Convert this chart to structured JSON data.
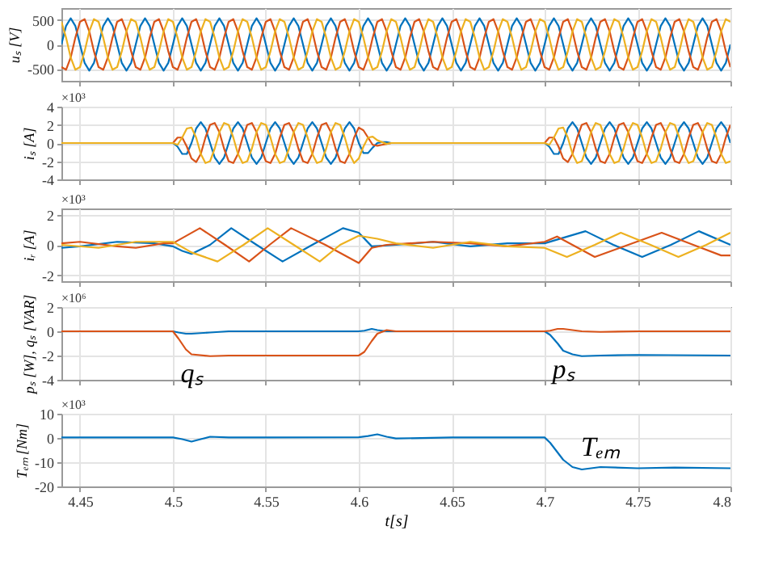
{
  "chart_data": [
    {
      "type": "line",
      "ylabel": "uₛ [V]",
      "xlim": [
        4.44,
        4.8
      ],
      "xticks": [
        4.45,
        4.5,
        4.55,
        4.6,
        4.65,
        4.7,
        4.75,
        4.8
      ],
      "ylim": [
        -750,
        750
      ],
      "yticks": [
        -500,
        0,
        500
      ],
      "grid": true,
      "tick_labels": "y",
      "x": [
        4.44,
        4.4425,
        4.445,
        4.4475,
        4.45,
        4.4525,
        4.455,
        4.4575,
        4.46,
        4.4625,
        4.465,
        4.4675,
        4.47,
        4.4725,
        4.475,
        4.4775,
        4.48,
        4.4825,
        4.485,
        4.4875,
        4.49,
        4.4925,
        4.495,
        4.4975,
        4.5,
        4.5025,
        4.505,
        4.5075,
        4.51,
        4.5125,
        4.515,
        4.5175,
        4.52,
        4.5225,
        4.525,
        4.5275,
        4.53,
        4.5325,
        4.535,
        4.5375,
        4.54,
        4.5425,
        4.545,
        4.5475,
        4.55,
        4.5525,
        4.555,
        4.5575,
        4.56,
        4.5625,
        4.565,
        4.5675,
        4.57,
        4.5725,
        4.575,
        4.5775,
        4.58,
        4.5825,
        4.585,
        4.5875,
        4.59,
        4.5925,
        4.595,
        4.5975,
        4.6,
        4.6025,
        4.605,
        4.6075,
        4.61,
        4.6125,
        4.615,
        4.6175,
        4.62,
        4.6225,
        4.625,
        4.6275,
        4.63,
        4.6325,
        4.635,
        4.6375,
        4.64,
        4.6425,
        4.645,
        4.6475,
        4.65,
        4.6525,
        4.655,
        4.6575,
        4.66,
        4.6625,
        4.665,
        4.6675,
        4.67,
        4.6725,
        4.675,
        4.6775,
        4.68,
        4.6825,
        4.685,
        4.6875,
        4.69,
        4.6925,
        4.695,
        4.6975,
        4.7,
        4.7025,
        4.705,
        4.7075,
        4.71,
        4.7125,
        4.715,
        4.7175,
        4.72,
        4.7225,
        4.725,
        4.7275,
        4.73,
        4.7325,
        4.735,
        4.7375,
        4.74,
        4.7425,
        4.745,
        4.7475,
        4.75,
        4.7525,
        4.755,
        4.7575,
        4.76,
        4.7625,
        4.765,
        4.7675,
        4.77,
        4.7725,
        4.775,
        4.7775,
        4.78,
        4.7825,
        4.785,
        4.7875,
        4.79,
        4.7925,
        4.795,
        4.7975,
        4.8
      ],
      "series": [
        {
          "color": "#0072bd",
          "values": [
            0,
            382,
            540,
            382,
            0,
            -382,
            -540,
            -382,
            0,
            382,
            540,
            382,
            0,
            -382,
            -540,
            -382,
            0,
            382,
            540,
            382,
            0,
            -382,
            -540,
            -382,
            0,
            382,
            540,
            382,
            0,
            -382,
            -540,
            -382,
            0,
            382,
            540,
            382,
            0,
            -382,
            -540,
            -382,
            0,
            382,
            540,
            382,
            0,
            -382,
            -540,
            -382,
            0,
            382,
            540,
            382,
            0,
            -382,
            -540,
            -382,
            0,
            382,
            540,
            382,
            0,
            -382,
            -540,
            -382,
            0,
            382,
            540,
            382,
            0,
            -382,
            -540,
            -382,
            0,
            382,
            540,
            382,
            0,
            -382,
            -540,
            -382,
            0,
            382,
            540,
            382,
            0,
            -382,
            -540,
            -382,
            0,
            382,
            540,
            382,
            0,
            -382,
            -540,
            -382,
            0,
            382,
            540,
            382,
            0,
            -382,
            -540,
            -382,
            0,
            382,
            540,
            382,
            0,
            -382,
            -540,
            -382,
            0,
            382,
            540,
            382,
            0,
            -382,
            -540,
            -382,
            0,
            382,
            540,
            382,
            0,
            -382,
            -540,
            -382,
            0,
            382,
            540,
            382,
            0,
            -382,
            -540,
            -382,
            0,
            382,
            540,
            382,
            0,
            -382,
            -540,
            -382,
            0
          ]
        },
        {
          "color": "#d95319",
          "values": [
            -468,
            -522,
            -270,
            140,
            468,
            522,
            270,
            -140,
            -468,
            -522,
            -270,
            140,
            468,
            522,
            270,
            -140,
            -468,
            -522,
            -270,
            140,
            468,
            522,
            270,
            -140,
            -468,
            -522,
            -270,
            140,
            468,
            522,
            270,
            -140,
            -468,
            -522,
            -270,
            140,
            468,
            522,
            270,
            -140,
            -468,
            -522,
            -270,
            140,
            468,
            522,
            270,
            -140,
            -468,
            -522,
            -270,
            140,
            468,
            522,
            270,
            -140,
            -468,
            -522,
            -270,
            140,
            468,
            522,
            270,
            -140,
            -468,
            -522,
            -270,
            140,
            468,
            522,
            270,
            -140,
            -468,
            -522,
            -270,
            140,
            468,
            522,
            270,
            -140,
            -468,
            -522,
            -270,
            140,
            468,
            522,
            270,
            -140,
            -468,
            -522,
            -270,
            140,
            468,
            522,
            270,
            -140,
            -468,
            -522,
            -270,
            140,
            468,
            522,
            270,
            -140,
            -468,
            -522,
            -270,
            140,
            468,
            522,
            270,
            -140,
            -468,
            -522,
            -270,
            140,
            468,
            522,
            270,
            -140,
            -468,
            -522,
            -270,
            140,
            468,
            522,
            270,
            -140,
            -468,
            -522,
            -270,
            140,
            468,
            522,
            270,
            -140,
            -468,
            -522,
            -270,
            140,
            468,
            522,
            270,
            -140,
            -468
          ]
        },
        {
          "color": "#edb120",
          "values": [
            468,
            140,
            -270,
            -522,
            -468,
            -140,
            270,
            522,
            468,
            140,
            -270,
            -522,
            -468,
            -140,
            270,
            522,
            468,
            140,
            -270,
            -522,
            -468,
            -140,
            270,
            522,
            468,
            140,
            -270,
            -522,
            -468,
            -140,
            270,
            522,
            468,
            140,
            -270,
            -522,
            -468,
            -140,
            270,
            522,
            468,
            140,
            -270,
            -522,
            -468,
            -140,
            270,
            522,
            468,
            140,
            -270,
            -522,
            -468,
            -140,
            270,
            522,
            468,
            140,
            -270,
            -522,
            -468,
            -140,
            270,
            522,
            468,
            140,
            -270,
            -522,
            -468,
            -140,
            270,
            522,
            468,
            140,
            -270,
            -522,
            -468,
            -140,
            270,
            522,
            468,
            140,
            -270,
            -522,
            -468,
            -140,
            270,
            522,
            468,
            140,
            -270,
            -522,
            -468,
            -140,
            270,
            522,
            468,
            140,
            -270,
            -522,
            -468,
            -140,
            270,
            522,
            468,
            140,
            -270,
            -522,
            -468,
            -140,
            270,
            522,
            468,
            140,
            -270,
            -522,
            -468,
            -140,
            270,
            522,
            468,
            140,
            -270,
            -522,
            -468,
            -140,
            270,
            522,
            468,
            140,
            -270,
            -522,
            -468,
            -140,
            270,
            522,
            468,
            140,
            -270,
            -522,
            -468,
            -140,
            270,
            522,
            468
          ]
        }
      ]
    },
    {
      "type": "line",
      "ylabel": "iₛ [A]",
      "xlim": [
        4.44,
        4.8
      ],
      "xticks": [
        4.45,
        4.5,
        4.55,
        4.6,
        4.65,
        4.7,
        4.75,
        4.8
      ],
      "ylim": [
        -4,
        4
      ],
      "yticks": [
        -4,
        -2,
        0,
        2,
        4
      ],
      "grid": true,
      "tick_labels": "y",
      "annotations": [
        "×10³"
      ],
      "x": [
        4.44,
        4.5,
        4.5025,
        4.505,
        4.5075,
        4.51,
        4.5125,
        4.515,
        4.5175,
        4.52,
        4.5225,
        4.525,
        4.5275,
        4.53,
        4.5325,
        4.535,
        4.5375,
        4.54,
        4.5425,
        4.545,
        4.5475,
        4.55,
        4.5525,
        4.555,
        4.5575,
        4.56,
        4.5625,
        4.565,
        4.5675,
        4.57,
        4.5725,
        4.575,
        4.5775,
        4.58,
        4.5825,
        4.585,
        4.5875,
        4.59,
        4.5925,
        4.595,
        4.5975,
        4.6,
        4.6025,
        4.605,
        4.6075,
        4.61,
        4.6125,
        4.615,
        4.6175,
        4.62,
        4.7,
        4.7025,
        4.705,
        4.7075,
        4.71,
        4.7125,
        4.715,
        4.7175,
        4.72,
        4.7225,
        4.725,
        4.7275,
        4.73,
        4.7325,
        4.735,
        4.7375,
        4.74,
        4.7425,
        4.745,
        4.7475,
        4.75,
        4.7525,
        4.755,
        4.7575,
        4.76,
        4.7625,
        4.765,
        4.7675,
        4.77,
        4.7725,
        4.775,
        4.7775,
        4.78,
        4.7825,
        4.785,
        4.7875,
        4.79,
        4.7925,
        4.795,
        4.7975,
        4.8
      ],
      "series": [
        {
          "color": "#0072bd",
          "values": [
            0,
            0,
            -0.4,
            -1.2,
            -1.2,
            0,
            1.6,
            2.3,
            1.6,
            0,
            -1.6,
            -2.3,
            -1.6,
            0,
            1.6,
            2.3,
            1.6,
            0,
            -1.6,
            -2.3,
            -1.6,
            0,
            1.6,
            2.3,
            1.6,
            0,
            -1.6,
            -2.3,
            -1.6,
            0,
            1.6,
            2.3,
            1.6,
            0,
            -1.6,
            -2.3,
            -1.6,
            0,
            1.6,
            2.3,
            1.6,
            0,
            -1.1,
            -1.1,
            -0.5,
            0,
            0.1,
            0.1,
            0,
            0,
            0,
            -0.4,
            -1.2,
            -1.2,
            0,
            1.6,
            2.3,
            1.6,
            0,
            -1.6,
            -2.3,
            -1.6,
            0,
            1.6,
            2.3,
            1.6,
            0,
            -1.6,
            -2.3,
            -1.6,
            0,
            1.6,
            2.3,
            1.6,
            0,
            -1.6,
            -2.3,
            -1.6,
            0,
            1.6,
            2.3,
            1.6,
            0,
            -1.6,
            -2.3,
            -1.6,
            0,
            1.6,
            2.3,
            1.6,
            0
          ]
        },
        {
          "color": "#d95319",
          "values": [
            0,
            0,
            0.6,
            0.6,
            -0.4,
            -1.7,
            -2.1,
            -1.2,
            0.6,
            2.0,
            2.2,
            1.2,
            -0.6,
            -2.0,
            -2.2,
            -1.2,
            0.6,
            2.0,
            2.2,
            1.2,
            -0.6,
            -2.0,
            -2.2,
            -1.2,
            0.6,
            2.0,
            2.2,
            1.2,
            -0.6,
            -2.0,
            -2.2,
            -1.2,
            0.6,
            2.0,
            2.2,
            1.2,
            -0.6,
            -2.0,
            -2.2,
            -1.2,
            0.6,
            1.7,
            1.4,
            0.6,
            -0.2,
            -0.3,
            -0.2,
            -0.1,
            0,
            0,
            0,
            0.6,
            0.6,
            -0.4,
            -1.7,
            -2.1,
            -1.2,
            0.6,
            2.0,
            2.2,
            1.2,
            -0.6,
            -2.0,
            -2.2,
            -1.2,
            0.6,
            2.0,
            2.2,
            1.2,
            -0.6,
            -2.0,
            -2.2,
            -1.2,
            0.6,
            2.0,
            2.2,
            1.2,
            -0.6,
            -2.0,
            -2.2,
            -1.2,
            0.6,
            2.0,
            2.2,
            1.2,
            -0.6,
            -2.0,
            -2.2,
            -1.2,
            0.6,
            2.0
          ]
        },
        {
          "color": "#edb120",
          "values": [
            0,
            0,
            -0.2,
            0.6,
            1.6,
            1.7,
            0.6,
            -1.2,
            -2.2,
            -2.0,
            -0.6,
            1.2,
            2.2,
            2.0,
            0.6,
            -1.2,
            -2.2,
            -2.0,
            -0.6,
            1.2,
            2.2,
            2.0,
            0.6,
            -1.2,
            -2.2,
            -2.0,
            -0.6,
            1.2,
            2.2,
            2.0,
            0.6,
            -1.2,
            -2.2,
            -2.0,
            -0.6,
            1.2,
            2.2,
            2.0,
            0.6,
            -1.2,
            -2.2,
            -1.7,
            -0.4,
            0.6,
            0.7,
            0.3,
            0.1,
            -0.1,
            0,
            0,
            0,
            -0.2,
            0.6,
            1.6,
            1.7,
            0.6,
            -1.2,
            -2.2,
            -2.0,
            -0.6,
            1.2,
            2.2,
            2.0,
            0.6,
            -1.2,
            -2.2,
            -2.0,
            -0.6,
            1.2,
            2.2,
            2.0,
            0.6,
            -1.2,
            -2.2,
            -2.0,
            -0.6,
            1.2,
            2.2,
            2.0,
            0.6,
            -1.2,
            -2.2,
            -2.0,
            -0.6,
            1.2,
            2.2,
            2.0,
            0.6,
            -1.2,
            -2.2,
            -2.0
          ]
        }
      ]
    },
    {
      "type": "line",
      "ylabel": "iᵣ [A]",
      "xlim": [
        4.44,
        4.8
      ],
      "xticks": [
        4.45,
        4.5,
        4.55,
        4.6,
        4.65,
        4.7,
        4.75,
        4.8
      ],
      "ylim": [
        -2.4,
        2.4
      ],
      "yticks": [
        -2,
        0,
        2
      ],
      "grid": true,
      "tick_labels": "y",
      "annotations": [
        "×10³"
      ],
      "series": [
        {
          "color": "#0072bd",
          "x": [
            4.44,
            4.45,
            4.47,
            4.49,
            4.5,
            4.505,
            4.51,
            4.52,
            4.5314,
            4.545,
            4.559,
            4.575,
            4.5915,
            4.6,
            4.607,
            4.62,
            4.64,
            4.66,
            4.68,
            4.7,
            4.722,
            4.737,
            4.7525,
            4.768,
            4.783,
            4.8
          ],
          "values": [
            -0.2,
            -0.1,
            0.2,
            0.1,
            -0.1,
            -0.4,
            -0.6,
            0,
            1.1,
            0,
            -1.1,
            0,
            1.1,
            0.8,
            -0.1,
            0,
            0.2,
            -0.1,
            0.1,
            0.1,
            0.9,
            0,
            -0.8,
            0,
            0.9,
            0
          ]
        },
        {
          "color": "#d95319",
          "x": [
            4.44,
            4.45,
            4.47,
            4.48,
            4.495,
            4.5,
            4.5145,
            4.528,
            4.541,
            4.552,
            4.5636,
            4.582,
            4.6,
            4.607,
            4.615,
            4.64,
            4.66,
            4.68,
            4.7,
            4.7067,
            4.727,
            4.745,
            4.763,
            4.78,
            4.795,
            4.8
          ],
          "values": [
            0.1,
            0.2,
            -0.1,
            -0.2,
            0.1,
            0.1,
            1.1,
            0,
            -1.1,
            0,
            1.1,
            0,
            -1.2,
            -0.2,
            0,
            0.2,
            0.1,
            -0.1,
            0.2,
            0.55,
            -0.8,
            0,
            0.8,
            0,
            -0.7,
            -0.7
          ]
        },
        {
          "color": "#edb120",
          "x": [
            4.44,
            4.46,
            4.48,
            4.5,
            4.51,
            4.524,
            4.538,
            4.551,
            4.565,
            4.579,
            4.59,
            4.6,
            4.61,
            4.62,
            4.64,
            4.66,
            4.68,
            4.7,
            4.712,
            4.727,
            4.741,
            4.757,
            4.772,
            4.787,
            4.8
          ],
          "values": [
            0,
            -0.2,
            0.2,
            0.2,
            -0.5,
            -1.1,
            0,
            1.1,
            0,
            -1.1,
            0,
            0.6,
            0.4,
            0.1,
            -0.2,
            0.2,
            -0.1,
            -0.2,
            -0.8,
            0,
            0.8,
            0,
            -0.8,
            0,
            0.8
          ]
        }
      ]
    },
    {
      "type": "line",
      "ylabel": "pₛ [W], qₛ [VAR]",
      "xlim": [
        4.44,
        4.8
      ],
      "xticks": [
        4.45,
        4.5,
        4.55,
        4.6,
        4.65,
        4.7,
        4.75,
        4.8
      ],
      "ylim": [
        -4,
        2
      ],
      "yticks": [
        -4,
        -2,
        0,
        2
      ],
      "grid": true,
      "tick_labels": "y",
      "annotations": [
        "×10⁶",
        {
          "text": "qₛ",
          "x": 4.51,
          "y": -1.9
        },
        {
          "text": "pₛ",
          "x": 4.71,
          "y": -1.6
        }
      ],
      "x": [
        4.44,
        4.5,
        4.503,
        4.507,
        4.51,
        4.52,
        4.53,
        4.55,
        4.6,
        4.603,
        4.607,
        4.61,
        4.615,
        4.62,
        4.65,
        4.7,
        4.703,
        4.707,
        4.71,
        4.715,
        4.72,
        4.73,
        4.75,
        4.8
      ],
      "series": [
        {
          "color": "#0072bd",
          "values": [
            0,
            0,
            -0.1,
            -0.2,
            -0.2,
            -0.1,
            0,
            0,
            0,
            0.05,
            0.2,
            0.1,
            0,
            0,
            0,
            0,
            -0.3,
            -1.0,
            -1.6,
            -1.9,
            -2.05,
            -2.0,
            -1.95,
            -2.0
          ]
        },
        {
          "color": "#d95319",
          "values": [
            0,
            0,
            -0.6,
            -1.5,
            -1.9,
            -2.05,
            -2.0,
            -2.0,
            -2.0,
            -1.7,
            -0.8,
            -0.2,
            0.1,
            0,
            0,
            0,
            0.05,
            0.2,
            0.2,
            0.1,
            0,
            -0.05,
            0,
            0
          ]
        }
      ]
    },
    {
      "type": "line",
      "ylabel": "Tₑₘ [Nm]",
      "xlabel": "t[s]",
      "xlim": [
        4.44,
        4.8
      ],
      "xticks": [
        4.45,
        4.5,
        4.55,
        4.6,
        4.65,
        4.7,
        4.75,
        4.8
      ],
      "ylim": [
        -20,
        10
      ],
      "yticks": [
        -20,
        -10,
        0,
        10
      ],
      "grid": true,
      "annotations": [
        "×10³",
        {
          "text": "Tₑₘ",
          "x": 4.73,
          "y": -12
        }
      ],
      "x": [
        4.44,
        4.5,
        4.505,
        4.51,
        4.515,
        4.52,
        4.53,
        4.55,
        4.6,
        4.605,
        4.61,
        4.615,
        4.62,
        4.65,
        4.7,
        4.703,
        4.707,
        4.71,
        4.715,
        4.72,
        4.73,
        4.75,
        4.77,
        4.8
      ],
      "series": [
        {
          "color": "#0072bd",
          "values": [
            0.2,
            0.2,
            -0.5,
            -1.5,
            -0.5,
            0.5,
            0.2,
            0.2,
            0.3,
            0.8,
            1.5,
            0.5,
            -0.2,
            0.2,
            0.2,
            -2,
            -6,
            -9,
            -12,
            -13,
            -12,
            -12.5,
            -12.2,
            -12.5
          ]
        }
      ]
    }
  ]
}
